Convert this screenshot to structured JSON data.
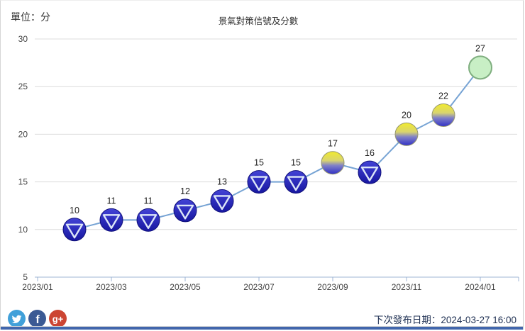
{
  "page": {
    "unit_label": "單位：分",
    "title": "景氣對策信號及分數",
    "footer": {
      "next_release_label": "下次發布日期：2024-03-27 16:00",
      "social": {
        "facebook_glyph": "f",
        "google_plus_glyph": "g+"
      }
    }
  },
  "colors": {
    "line": "#76a3d4",
    "grid": "#dcdcdc",
    "axis": "#9fb6d4",
    "tick_text": "#444444",
    "label_text": "#222222",
    "blue_top": "#4343d6",
    "blue_bottom": "#1717a0",
    "blue_border": "#10107a",
    "triangle": "#dce6f8",
    "yellow": "#f1eb2d",
    "yb_mid1": "#d9d46f",
    "yb_mid2": "#8080c8",
    "yellow_blue": "#3030c6",
    "yb_border": "#97976f",
    "green_fill": "#c8efc5",
    "green_border": "#7fae7f",
    "bottom_bar": "#4166ac",
    "twitter": "#41a0d9",
    "facebook": "#3b5a94",
    "google_plus": "#cc4532"
  },
  "chart_data": {
    "type": "line",
    "title": "景氣對策信號及分數",
    "unit_label": "單位：分",
    "x": [
      "2023/02",
      "2023/03",
      "2023/04",
      "2023/05",
      "2023/06",
      "2023/07",
      "2023/08",
      "2023/09",
      "2023/10",
      "2023/11",
      "2023/12",
      "2024/01"
    ],
    "values": [
      10,
      11,
      11,
      12,
      13,
      15,
      15,
      17,
      16,
      20,
      22,
      27
    ],
    "point_signals": [
      "blue",
      "blue",
      "blue",
      "blue",
      "blue",
      "blue",
      "blue",
      "yellow-blue",
      "blue",
      "yellow-blue",
      "yellow-blue",
      "green"
    ],
    "x_tick_labels": [
      "2023/01",
      "2023/03",
      "2023/05",
      "2023/07",
      "2023/09",
      "2023/11",
      "2024/01"
    ],
    "y_tick_labels": [
      30,
      25,
      20,
      15,
      10,
      5
    ],
    "ylim": [
      5,
      30
    ],
    "grid": true,
    "legend": "none",
    "marker_shape_blue_signal": "circle-with-down-triangle",
    "marker_shape_other": "plain-circle"
  }
}
